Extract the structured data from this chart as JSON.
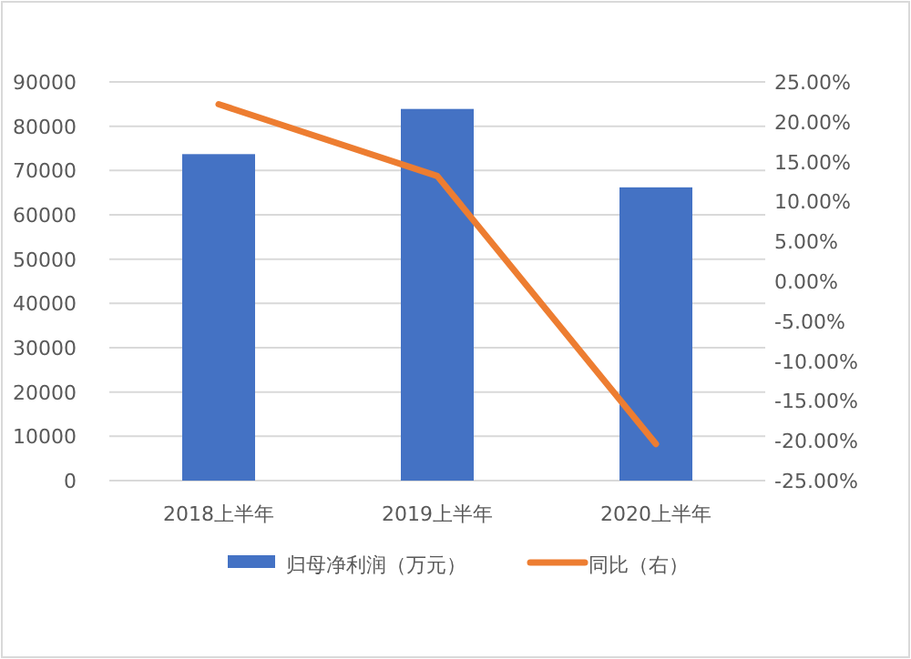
{
  "chart_data": {
    "type": "bar",
    "categories": [
      "2018上半年",
      "2019上半年",
      "2020上半年"
    ],
    "series": [
      {
        "name": "归母净利润（万元）",
        "color": "#4472c4",
        "values": [
          73700,
          83900,
          66200
        ]
      },
      {
        "name": "同比（右）",
        "type": "line",
        "axis": "y2",
        "color": "#ed7d31",
        "values": [
          22.2,
          13.2,
          -20.4
        ]
      }
    ],
    "ylim": [
      0,
      90000
    ],
    "yticks": [
      0,
      10000,
      20000,
      30000,
      40000,
      50000,
      60000,
      70000,
      80000,
      90000
    ],
    "y2lim": [
      -25,
      25
    ],
    "y2ticks": [
      {
        "value": -25,
        "label": "-25.00%"
      },
      {
        "value": -20,
        "label": "-20.00%"
      },
      {
        "value": -15,
        "label": "-15.00%"
      },
      {
        "value": -10,
        "label": "-10.00%"
      },
      {
        "value": -5,
        "label": "-5.00%"
      },
      {
        "value": 0,
        "label": "0.00%"
      },
      {
        "value": 5,
        "label": "5.00%"
      },
      {
        "value": 10,
        "label": "10.00%"
      },
      {
        "value": 15,
        "label": "15.00%"
      },
      {
        "value": 20,
        "label": "20.00%"
      },
      {
        "value": 25,
        "label": "25.00%"
      }
    ],
    "grid": "y",
    "legend": "bottom",
    "marker": "none",
    "line_style": "solid"
  }
}
